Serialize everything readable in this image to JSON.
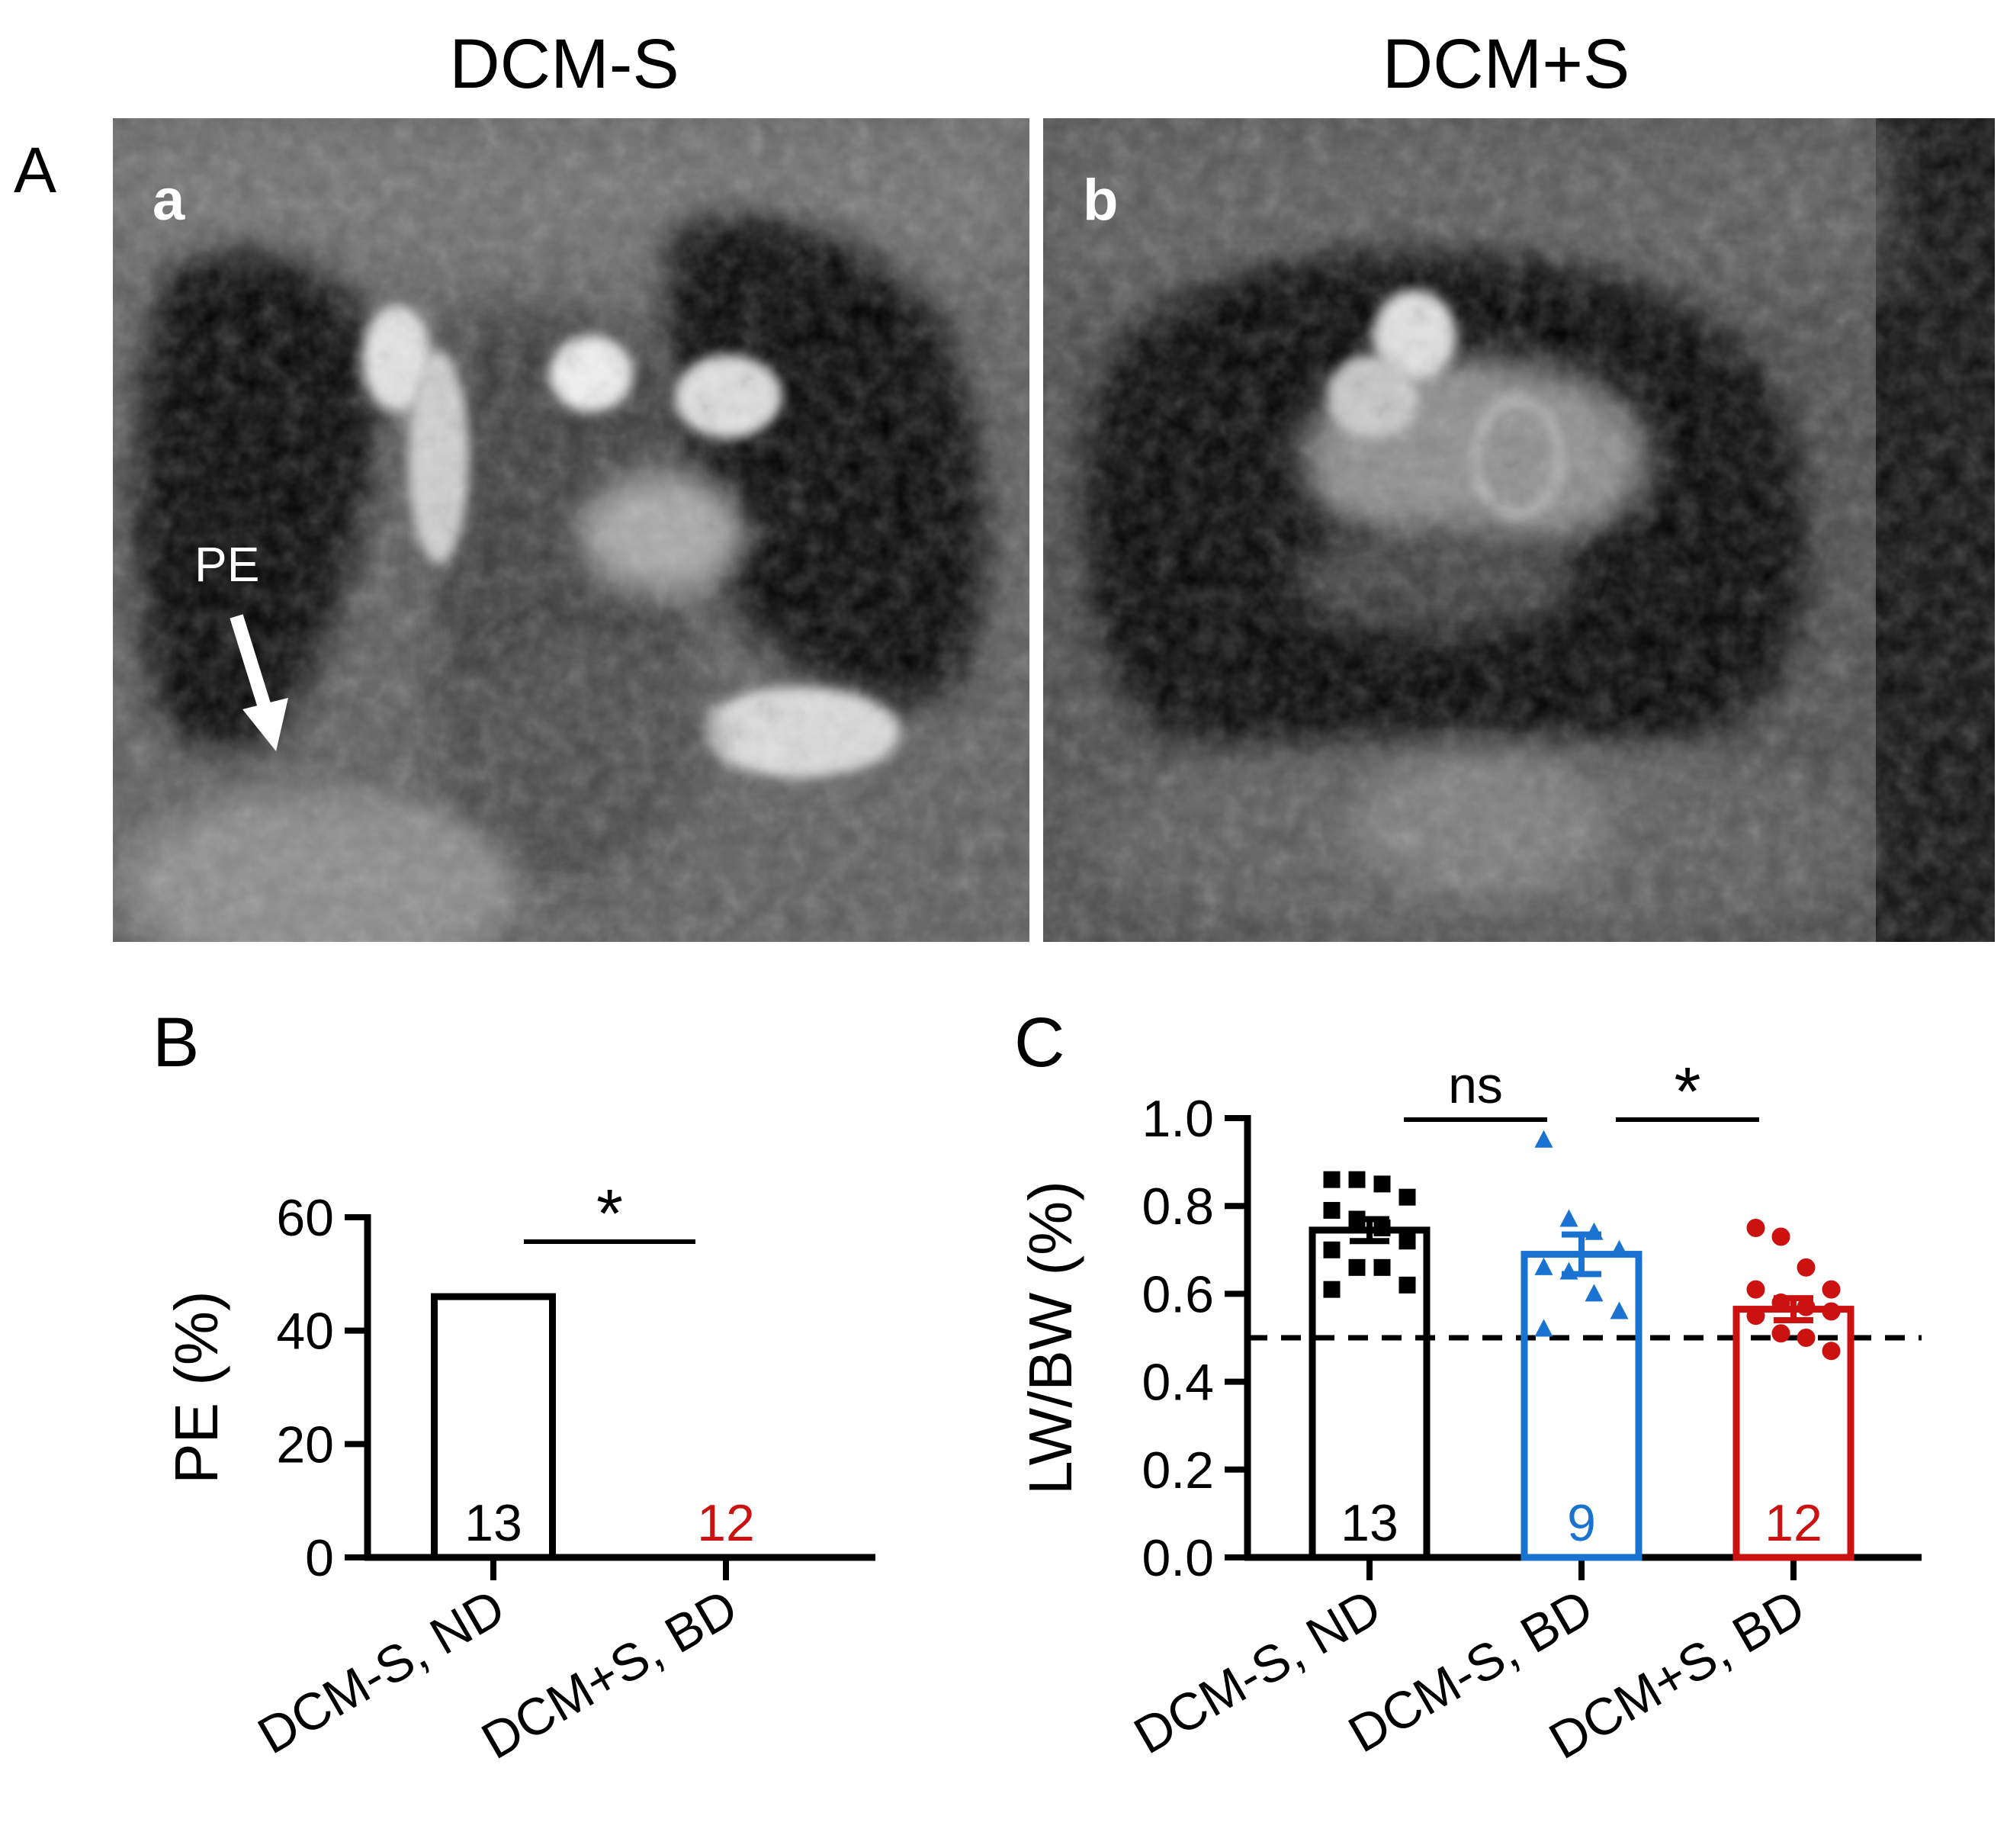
{
  "panel_a": {
    "letter": "A",
    "left_title": "DCM-S",
    "right_title": "DCM+S",
    "left_sublabel": "a",
    "right_sublabel": "b",
    "annotation": "PE"
  },
  "chart_data": [
    {
      "panel": "B",
      "type": "bar",
      "ylabel": "PE (%)",
      "ylim": [
        0,
        60
      ],
      "yticks": [
        "0",
        "20",
        "40",
        "60"
      ],
      "categories": [
        "DCM-S, ND",
        "DCM+S, BD"
      ],
      "values": [
        46,
        0
      ],
      "n_labels": [
        "13",
        "12"
      ],
      "colors": [
        "#000000",
        "#cc1111"
      ],
      "significance": [
        {
          "from": 0,
          "to": 1,
          "label": "*"
        }
      ]
    },
    {
      "panel": "C",
      "type": "bar",
      "ylabel": "LW/BW (%)",
      "ylim": [
        0,
        1.0
      ],
      "yticks": [
        "0.0",
        "0.2",
        "0.4",
        "0.6",
        "0.8",
        "1.0"
      ],
      "categories": [
        "DCM-S, ND",
        "DCM-S, BD",
        "DCM+S, BD"
      ],
      "values": [
        0.745,
        0.69,
        0.565
      ],
      "sem": [
        0.025,
        0.045,
        0.025
      ],
      "reference_line": 0.5,
      "n_labels": [
        "13",
        "9",
        "12"
      ],
      "colors": [
        "#000000",
        "#1a73d1",
        "#cc1111"
      ],
      "markers": [
        "square",
        "triangle",
        "circle"
      ],
      "points": [
        [
          0.86,
          0.86,
          0.85,
          0.82,
          0.79,
          0.77,
          0.75,
          0.72,
          0.7,
          0.66,
          0.66,
          0.62,
          0.61
        ],
        [
          0.95,
          0.77,
          0.74,
          0.7,
          0.66,
          0.65,
          0.6,
          0.56,
          0.52
        ],
        [
          0.75,
          0.73,
          0.66,
          0.61,
          0.61,
          0.58,
          0.57,
          0.56,
          0.55,
          0.51,
          0.5,
          0.47
        ]
      ],
      "significance": [
        {
          "from": 0,
          "to": 1,
          "label": "ns"
        },
        {
          "from": 1,
          "to": 2,
          "label": "*"
        }
      ]
    }
  ]
}
